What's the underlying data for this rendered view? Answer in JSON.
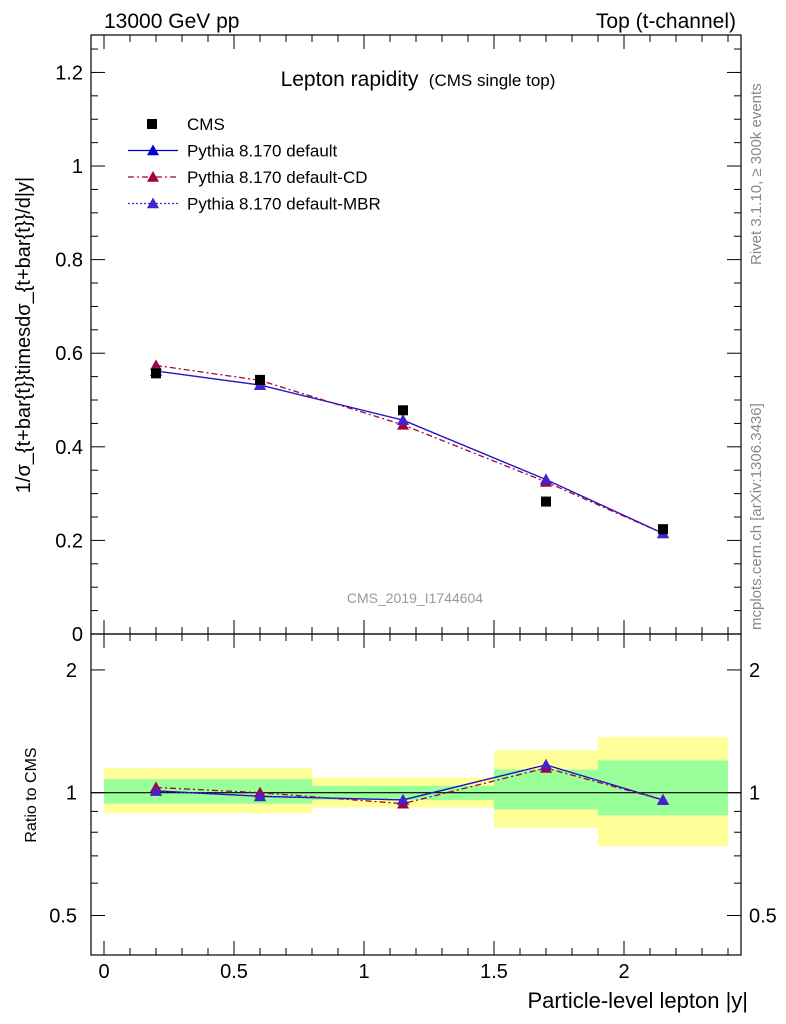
{
  "header": {
    "left": "13000 GeV pp",
    "right": "Top (t-channel)"
  },
  "title": {
    "main": "Lepton rapidity",
    "sub": "(CMS single top)"
  },
  "side_labels": {
    "rivet": "Rivet 3.1.10, ≥ 300k events",
    "mcplots": "mcplots.cern.ch [arXiv:1306.3436]"
  },
  "watermark": "CMS_2019_I1744604",
  "axes": {
    "top_ylabel": "1/σ_{t+bar{t}}timesdσ_{t+bar{t}}/d|y|",
    "ratio_ylabel": "Ratio to CMS",
    "xlabel": "Particle-level lepton |y|",
    "x_ticks": [
      "0",
      "0.5",
      "1",
      "1.5",
      "2"
    ],
    "top_y_ticks": [
      "0",
      "0.2",
      "0.4",
      "0.6",
      "0.8",
      "1",
      "1.2"
    ],
    "ratio_y_ticks": [
      "0.5",
      "1",
      "2"
    ]
  },
  "legend": {
    "entries": [
      "CMS",
      "Pythia 8.170 default",
      "Pythia 8.170 default-CD",
      "Pythia 8.170 default-MBR"
    ]
  },
  "colors": {
    "data": "#000000",
    "default": "#0000cc",
    "cd": "#aa0033",
    "mbr": "#4422cc",
    "band_inner": "#99ff99",
    "band_outer": "#ffff99"
  },
  "chart_data": [
    {
      "type": "scatter",
      "title": "Lepton rapidity (CMS single top)",
      "xlabel": "Particle-level lepton |y|",
      "ylabel": "1/σ_{t+bar{t}}timesdσ_{t+bar{t}}/d|y|",
      "xlim": [
        -0.05,
        2.45
      ],
      "ylim": [
        0,
        1.28
      ],
      "bins": [
        [
          0,
          0.4
        ],
        [
          0.4,
          0.8
        ],
        [
          0.8,
          1.5
        ],
        [
          1.5,
          1.9
        ],
        [
          1.9,
          2.4
        ]
      ],
      "x": [
        0.2,
        0.6,
        1.15,
        1.7,
        2.15
      ],
      "series": [
        {
          "name": "CMS",
          "values": [
            0.557,
            0.543,
            0.478,
            0.283,
            0.224
          ]
        },
        {
          "name": "Pythia 8.170 default",
          "values": [
            0.562,
            0.532,
            0.457,
            0.33,
            0.215
          ]
        },
        {
          "name": "Pythia 8.170 default-CD",
          "values": [
            0.574,
            0.542,
            0.447,
            0.325,
            0.215
          ]
        },
        {
          "name": "Pythia 8.170 default-MBR",
          "values": [
            0.562,
            0.532,
            0.457,
            0.33,
            0.215
          ]
        }
      ]
    },
    {
      "type": "line",
      "title": "",
      "xlabel": "Particle-level lepton |y|",
      "ylabel": "Ratio to CMS",
      "xlim": [
        -0.05,
        2.45
      ],
      "ylim": [
        0.4,
        2.45
      ],
      "yscale": "log",
      "bins": [
        [
          0,
          0.4
        ],
        [
          0.4,
          0.8
        ],
        [
          0.8,
          1.5
        ],
        [
          1.5,
          1.9
        ],
        [
          1.9,
          2.4
        ]
      ],
      "x": [
        0.2,
        0.6,
        1.15,
        1.7,
        2.15
      ],
      "band_inner": [
        [
          0.94,
          1.08
        ],
        [
          0.94,
          1.08
        ],
        [
          0.96,
          1.04
        ],
        [
          0.91,
          1.14
        ],
        [
          0.88,
          1.2
        ]
      ],
      "band_outer": [
        [
          0.89,
          1.15
        ],
        [
          0.89,
          1.15
        ],
        [
          0.92,
          1.09
        ],
        [
          0.82,
          1.27
        ],
        [
          0.74,
          1.37
        ]
      ],
      "series": [
        {
          "name": "Pythia 8.170 default",
          "values": [
            1.01,
            0.98,
            0.96,
            1.17,
            0.96
          ]
        },
        {
          "name": "Pythia 8.170 default-CD",
          "values": [
            1.03,
            1.0,
            0.94,
            1.15,
            0.96
          ]
        },
        {
          "name": "Pythia 8.170 default-MBR",
          "values": [
            1.01,
            0.98,
            0.96,
            1.17,
            0.96
          ]
        }
      ]
    }
  ]
}
